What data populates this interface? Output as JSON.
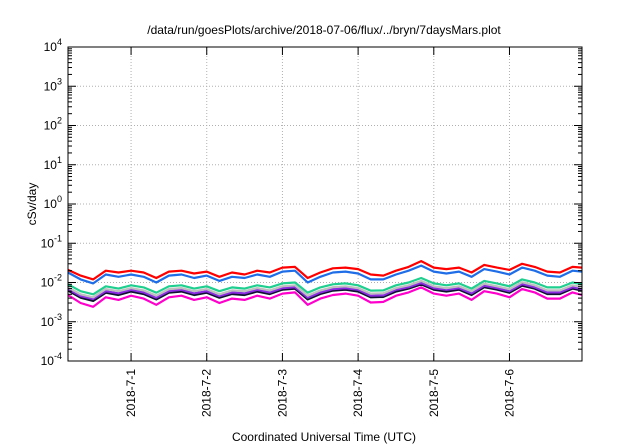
{
  "chart_data": {
    "type": "line",
    "title": "/data/run/goesPlots/archive/2018-07-06/flux/../bryn/7daysMars.plot",
    "xlabel": "Coordinated Universal Time (UTC)",
    "ylabel": "cSv/day",
    "y_scale": "log",
    "ylim": [
      0.0001,
      10000
    ],
    "y_ticks": [
      {
        "value": 0.0001,
        "base": "10",
        "exp": "-4"
      },
      {
        "value": 0.001,
        "base": "10",
        "exp": "-3"
      },
      {
        "value": 0.01,
        "base": "10",
        "exp": "-2"
      },
      {
        "value": 0.1,
        "base": "10",
        "exp": "-1"
      },
      {
        "value": 1,
        "base": "10",
        "exp": "0"
      },
      {
        "value": 10,
        "base": "10",
        "exp": "1"
      },
      {
        "value": 100,
        "base": "10",
        "exp": "2"
      },
      {
        "value": 1000,
        "base": "10",
        "exp": "3"
      },
      {
        "value": 10000,
        "base": "10",
        "exp": "4"
      }
    ],
    "xlim": [
      "2018-06-30 04:00",
      "2018-07-06 23:00"
    ],
    "x_ticks": [
      "2018-7-1",
      "2018-7-2",
      "2018-7-3",
      "2018-7-4",
      "2018-7-5",
      "2018-7-6"
    ],
    "grid": true,
    "x": [
      "2018-06-30 04:00",
      "2018-06-30 08:00",
      "2018-06-30 12:00",
      "2018-06-30 16:00",
      "2018-06-30 20:00",
      "2018-07-01 00:00",
      "2018-07-01 04:00",
      "2018-07-01 08:00",
      "2018-07-01 12:00",
      "2018-07-01 16:00",
      "2018-07-01 20:00",
      "2018-07-02 00:00",
      "2018-07-02 04:00",
      "2018-07-02 08:00",
      "2018-07-02 12:00",
      "2018-07-02 16:00",
      "2018-07-02 20:00",
      "2018-07-03 00:00",
      "2018-07-03 04:00",
      "2018-07-03 08:00",
      "2018-07-03 12:00",
      "2018-07-03 16:00",
      "2018-07-03 20:00",
      "2018-07-04 00:00",
      "2018-07-04 04:00",
      "2018-07-04 08:00",
      "2018-07-04 12:00",
      "2018-07-04 16:00",
      "2018-07-04 20:00",
      "2018-07-05 00:00",
      "2018-07-05 04:00",
      "2018-07-05 08:00",
      "2018-07-05 12:00",
      "2018-07-05 16:00",
      "2018-07-05 20:00",
      "2018-07-06 00:00",
      "2018-07-06 04:00",
      "2018-07-06 08:00",
      "2018-07-06 12:00",
      "2018-07-06 16:00",
      "2018-07-06 20:00",
      "2018-07-06 23:00"
    ],
    "series": [
      {
        "color": "#ff0000",
        "values": [
          0.021,
          0.015,
          0.012,
          0.02,
          0.018,
          0.02,
          0.018,
          0.013,
          0.019,
          0.02,
          0.017,
          0.019,
          0.014,
          0.018,
          0.016,
          0.02,
          0.018,
          0.024,
          0.025,
          0.013,
          0.018,
          0.023,
          0.024,
          0.022,
          0.016,
          0.015,
          0.02,
          0.025,
          0.035,
          0.024,
          0.022,
          0.024,
          0.018,
          0.028,
          0.024,
          0.021,
          0.03,
          0.025,
          0.019,
          0.018,
          0.025,
          0.024
        ]
      },
      {
        "color": "#1f6ee8",
        "values": [
          0.018,
          0.012,
          0.0095,
          0.016,
          0.014,
          0.016,
          0.014,
          0.01,
          0.015,
          0.016,
          0.013,
          0.015,
          0.011,
          0.014,
          0.013,
          0.016,
          0.014,
          0.019,
          0.02,
          0.01,
          0.014,
          0.018,
          0.019,
          0.017,
          0.012,
          0.012,
          0.016,
          0.02,
          0.027,
          0.019,
          0.017,
          0.019,
          0.014,
          0.022,
          0.019,
          0.016,
          0.024,
          0.02,
          0.015,
          0.014,
          0.02,
          0.019
        ]
      },
      {
        "color": "#1fcf8f",
        "values": [
          0.009,
          0.006,
          0.005,
          0.008,
          0.007,
          0.0085,
          0.0075,
          0.0055,
          0.008,
          0.0085,
          0.007,
          0.008,
          0.006,
          0.0075,
          0.007,
          0.0085,
          0.0075,
          0.0095,
          0.01,
          0.0055,
          0.0075,
          0.009,
          0.0095,
          0.0085,
          0.0062,
          0.0063,
          0.0085,
          0.01,
          0.013,
          0.0095,
          0.0085,
          0.0095,
          0.007,
          0.011,
          0.0095,
          0.008,
          0.012,
          0.01,
          0.0075,
          0.0075,
          0.01,
          0.009
        ]
      },
      {
        "color": "#bfbfbf",
        "values": [
          0.0075,
          0.005,
          0.0042,
          0.0068,
          0.006,
          0.0072,
          0.0063,
          0.0046,
          0.0068,
          0.0072,
          0.006,
          0.0068,
          0.005,
          0.0063,
          0.006,
          0.0072,
          0.0063,
          0.008,
          0.0085,
          0.0046,
          0.0063,
          0.0076,
          0.008,
          0.0072,
          0.0052,
          0.0053,
          0.0072,
          0.0085,
          0.011,
          0.008,
          0.0072,
          0.008,
          0.006,
          0.0093,
          0.008,
          0.0068,
          0.0102,
          0.0085,
          0.0063,
          0.0063,
          0.0085,
          0.0076
        ]
      },
      {
        "color": "#8a2be2",
        "values": [
          0.0068,
          0.0045,
          0.0038,
          0.006,
          0.0053,
          0.0065,
          0.0056,
          0.0041,
          0.006,
          0.0065,
          0.0053,
          0.006,
          0.0045,
          0.0056,
          0.0053,
          0.0065,
          0.0056,
          0.0072,
          0.0076,
          0.0041,
          0.0056,
          0.0068,
          0.0072,
          0.0065,
          0.0046,
          0.0047,
          0.0065,
          0.0076,
          0.0098,
          0.0072,
          0.0065,
          0.0072,
          0.0053,
          0.0083,
          0.0072,
          0.006,
          0.0091,
          0.0076,
          0.0056,
          0.0056,
          0.0076,
          0.0068
        ]
      },
      {
        "color": "#101030",
        "values": [
          0.0062,
          0.0041,
          0.0034,
          0.0055,
          0.0048,
          0.0059,
          0.0051,
          0.0037,
          0.0055,
          0.0059,
          0.0048,
          0.0055,
          0.0041,
          0.0051,
          0.0048,
          0.0059,
          0.0051,
          0.0066,
          0.007,
          0.0037,
          0.0051,
          0.0062,
          0.0066,
          0.0059,
          0.0042,
          0.0043,
          0.0059,
          0.007,
          0.009,
          0.0066,
          0.0059,
          0.0066,
          0.0048,
          0.0076,
          0.0066,
          0.0055,
          0.0083,
          0.007,
          0.0051,
          0.0051,
          0.007,
          0.0062
        ]
      },
      {
        "color": "#ff00cc",
        "values": [
          0.0048,
          0.003,
          0.0024,
          0.0042,
          0.0036,
          0.0046,
          0.0039,
          0.0027,
          0.0042,
          0.0046,
          0.0036,
          0.0042,
          0.003,
          0.0039,
          0.0036,
          0.0046,
          0.0039,
          0.0052,
          0.0056,
          0.0027,
          0.0039,
          0.0048,
          0.0052,
          0.0046,
          0.0031,
          0.0032,
          0.0046,
          0.0056,
          0.0075,
          0.0052,
          0.0046,
          0.0052,
          0.0036,
          0.006,
          0.0052,
          0.0042,
          0.0068,
          0.0056,
          0.0039,
          0.0039,
          0.0056,
          0.0048
        ]
      }
    ]
  }
}
